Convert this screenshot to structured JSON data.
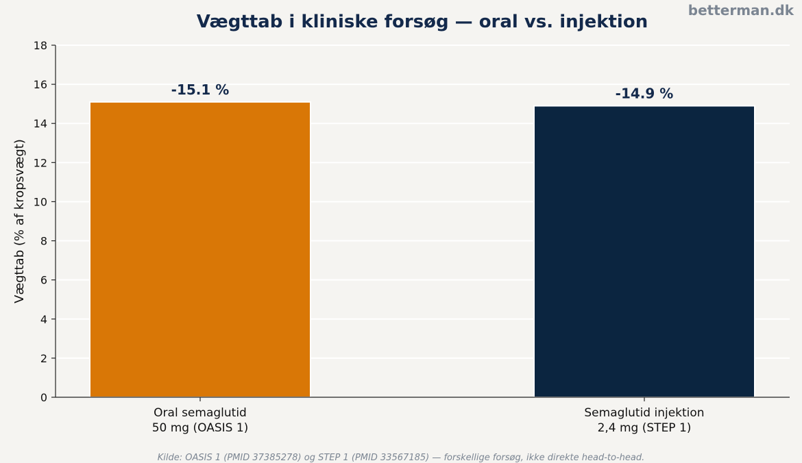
{
  "brand": "betterman.dk",
  "source_note": "Kilde: OASIS 1 (PMID 37385278) og STEP 1 (PMID 33567185) — forskellige forsøg, ikke direkte head-to-head.",
  "chart_data": {
    "type": "bar",
    "title": "Vægttab i kliniske forsøg — oral vs. injektion",
    "xlabel": "",
    "ylabel": "Vægttab (% af kropsvægt)",
    "ylim": [
      0,
      18
    ],
    "yticks": [
      0,
      2,
      4,
      6,
      8,
      10,
      12,
      14,
      16,
      18
    ],
    "grid": true,
    "categories": [
      [
        "Oral semaglutid",
        "50 mg (OASIS 1)"
      ],
      [
        "Semaglutid injektion",
        "2,4 mg (STEP 1)"
      ]
    ],
    "values": [
      15.1,
      14.9
    ],
    "data_labels": [
      "-15.1 %",
      "-14.9 %"
    ],
    "colors": [
      "#d97706",
      "#0b2540"
    ]
  }
}
